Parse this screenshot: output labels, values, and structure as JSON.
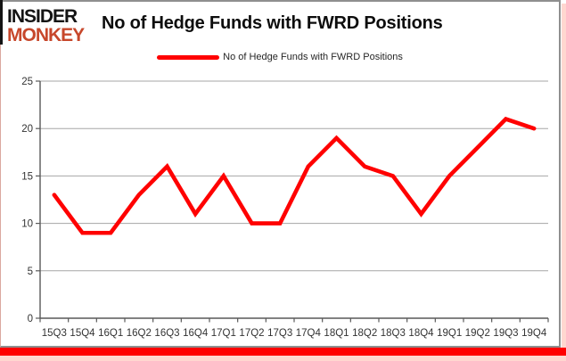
{
  "header": {
    "logo_line1": "INSIDER",
    "logo_line2": "MONKEY",
    "title": "No of Hedge Funds with FWRD Positions"
  },
  "legend": {
    "label": "No of Hedge Funds with FWRD Positions"
  },
  "colors": {
    "series_line": "#ff0000",
    "logo_insider": "#141414",
    "logo_monkey": "#c7472b",
    "gridline": "#a6a6a6",
    "axis": "#595959",
    "tick_label": "#333333",
    "bottom_bar": "#ff0000"
  },
  "chart_data": {
    "type": "line",
    "title": "No of Hedge Funds with FWRD Positions",
    "categories": [
      "15Q3",
      "15Q4",
      "16Q1",
      "16Q2",
      "16Q3",
      "16Q4",
      "17Q1",
      "17Q2",
      "17Q3",
      "17Q4",
      "18Q1",
      "18Q2",
      "18Q3",
      "18Q4",
      "19Q1",
      "19Q2",
      "19Q3",
      "19Q4"
    ],
    "series": [
      {
        "name": "No of Hedge Funds with FWRD Positions",
        "color": "#ff0000",
        "values": [
          13,
          9,
          9,
          13,
          16,
          11,
          15,
          10,
          10,
          16,
          19,
          16,
          15,
          11,
          15,
          18,
          21,
          20
        ]
      }
    ],
    "xlabel": "",
    "ylabel": "",
    "ylim": [
      0,
      25
    ],
    "yticks": [
      0,
      5,
      10,
      15,
      20,
      25
    ],
    "grid": "horizontal",
    "legend_position": "top-center"
  }
}
